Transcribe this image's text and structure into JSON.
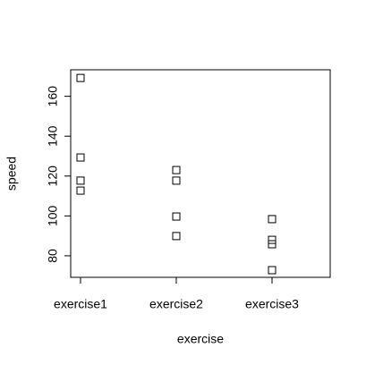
{
  "chart_data": {
    "type": "scatter",
    "xlabel": "exercise",
    "ylabel": "speed",
    "categories": [
      "exercise1",
      "exercise2",
      "exercise3"
    ],
    "x": [
      "exercise1",
      "exercise1",
      "exercise1",
      "exercise1",
      "exercise2",
      "exercise2",
      "exercise2",
      "exercise2",
      "exercise3",
      "exercise3",
      "exercise3",
      "exercise3"
    ],
    "values": [
      169.2,
      129.3,
      117.7,
      112.7,
      123,
      117.7,
      99.7,
      89.9,
      98.4,
      88,
      85.8,
      72.8
    ],
    "color": "#000000",
    "ylim": [
      69.2,
      173.3
    ],
    "yticks": [
      80,
      100,
      120,
      140,
      160
    ]
  }
}
